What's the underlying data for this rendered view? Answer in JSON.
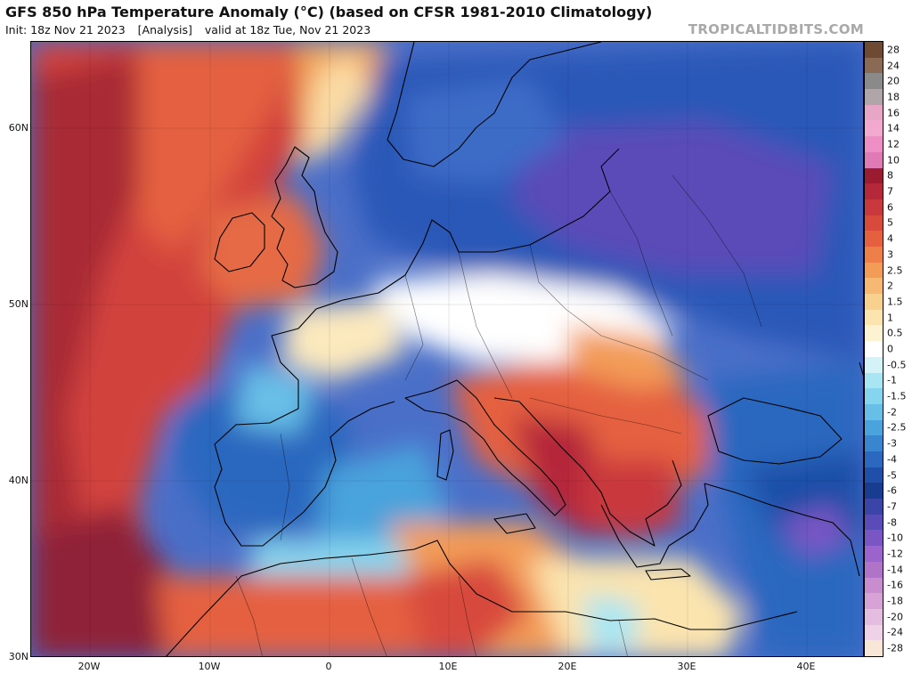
{
  "header": {
    "title": "GFS 850 hPa Temperature Anomaly (°C) (based on CFSR 1981-2010 Climatology)",
    "init": "Init: 18z Nov 21 2023",
    "analysis": "[Analysis]",
    "valid": "valid at 18z Tue, Nov 21 2023",
    "brand": "TROPICALTIDBITS.COM"
  },
  "axes": {
    "lat_labels": [
      "60N",
      "50N",
      "40N",
      "30N"
    ],
    "lon_labels": [
      "20W",
      "10W",
      "0",
      "10E",
      "20E",
      "30E",
      "40E"
    ]
  },
  "colorbar": {
    "labels": [
      "28",
      "24",
      "20",
      "18",
      "16",
      "14",
      "12",
      "10",
      "8",
      "7",
      "6",
      "5",
      "4",
      "3",
      "2.5",
      "2",
      "1.5",
      "1",
      "0.5",
      "0",
      "-0.5",
      "-1",
      "-1.5",
      "-2",
      "-2.5",
      "-3",
      "-4",
      "-5",
      "-6",
      "-7",
      "-8",
      "-10",
      "-12",
      "-14",
      "-16",
      "-18",
      "-20",
      "-24",
      "-28"
    ],
    "colors": [
      "#6e4a34",
      "#8a6a55",
      "#8a8a8a",
      "#b0a5a8",
      "#e8a6c6",
      "#f3a8cf",
      "#ee8ec4",
      "#e07ab6",
      "#9b1b30",
      "#b5283a",
      "#c9383d",
      "#d84a3c",
      "#e5603f",
      "#ee7f48",
      "#f39c58",
      "#f7b874",
      "#f9d18f",
      "#fbe4ae",
      "#fdf2d2",
      "#ffffff",
      "#d4f3f8",
      "#a8e6f3",
      "#86d5ee",
      "#67bfe7",
      "#4aa3dc",
      "#3a85cf",
      "#2c68bf",
      "#1f4fa8",
      "#183c8f",
      "#3b45a8",
      "#5a4cb8",
      "#7a55c4",
      "#9b63cc",
      "#b173c8",
      "#c88ccf",
      "#d7a3d6",
      "#e5bde0",
      "#f0d2e8",
      "#f8e6d6"
    ]
  }
}
